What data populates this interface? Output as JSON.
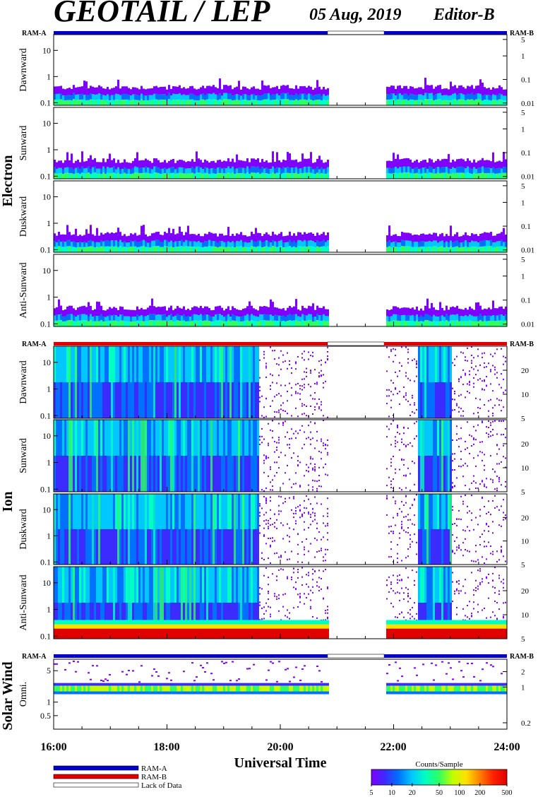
{
  "header": {
    "title": "GEOTAIL / LEP",
    "date": "05 Aug, 2019",
    "editor": "Editor-B"
  },
  "sections": {
    "electron": "Electron",
    "ion": "Ion",
    "solar_wind": "Solar Wind"
  },
  "ram_labels": {
    "a": "RAM-A",
    "b": "RAM-B"
  },
  "legend": {
    "ram_a": "RAM-A",
    "ram_b": "RAM-B",
    "lack": "Lack of Data",
    "colors": {
      "ram_a": "#0000c8",
      "ram_b": "#e00000",
      "lack": "#ffffff"
    }
  },
  "colorbar": {
    "title": "Counts/Sample",
    "ticks": [
      "5",
      "10",
      "20",
      "50",
      "100",
      "200",
      "500"
    ],
    "tick_values": [
      5,
      10,
      20,
      50,
      100,
      200,
      500
    ],
    "range": [
      5,
      500
    ],
    "scale": "log",
    "colormap": [
      "#7f00ff",
      "#3b2bff",
      "#0070ff",
      "#00c8ff",
      "#00ffc0",
      "#30ff60",
      "#c0ff00",
      "#ffe000",
      "#ff8000",
      "#ff2000",
      "#e00000"
    ]
  },
  "chart_data": {
    "type": "heatmap",
    "xlabel": "Universal Time",
    "x_ticks": [
      "16:00",
      "18:00",
      "20:00",
      "22:00",
      "24:00"
    ],
    "x_range": [
      "16:00",
      "24:00"
    ],
    "data_gap": [
      "20:50",
      "21:50"
    ],
    "panels": [
      {
        "group": "electron",
        "label": "Dawnward",
        "left_ticks": [
          "10",
          "1",
          "0.1"
        ],
        "left_values": [
          10,
          1,
          0.1
        ],
        "left_range": [
          0.08,
          40
        ],
        "right_ticks": [
          "5",
          "1",
          "0.1",
          "0.01"
        ],
        "right_values": [
          5,
          1,
          0.1,
          0.01
        ],
        "right_range": [
          0.008,
          8
        ]
      },
      {
        "group": "electron",
        "label": "Sunward",
        "left_ticks": [
          "10",
          "1",
          "0.1"
        ],
        "left_values": [
          10,
          1,
          0.1
        ],
        "left_range": [
          0.08,
          40
        ],
        "right_ticks": [
          "5",
          "1",
          "0.1",
          "0.01"
        ],
        "right_values": [
          5,
          1,
          0.1,
          0.01
        ],
        "right_range": [
          0.008,
          8
        ]
      },
      {
        "group": "electron",
        "label": "Duskward",
        "left_ticks": [
          "10",
          "1",
          "0.1"
        ],
        "left_values": [
          10,
          1,
          0.1
        ],
        "left_range": [
          0.08,
          40
        ],
        "right_ticks": [
          "5",
          "1",
          "0.1",
          "0.01"
        ],
        "right_values": [
          5,
          1,
          0.1,
          0.01
        ],
        "right_range": [
          0.008,
          8
        ]
      },
      {
        "group": "electron",
        "label": "Anti-Sunward",
        "left_ticks": [
          "10",
          "1",
          "0.1"
        ],
        "left_values": [
          10,
          1,
          0.1
        ],
        "left_range": [
          0.08,
          40
        ],
        "right_ticks": [
          "5",
          "1",
          "0.1",
          "0.01"
        ],
        "right_values": [
          5,
          1,
          0.1,
          0.01
        ],
        "right_range": [
          0.008,
          8
        ]
      },
      {
        "group": "ion",
        "label": "Dawnward",
        "left_ticks": [
          "10",
          "1",
          "0.1"
        ],
        "left_values": [
          10,
          1,
          0.1
        ],
        "left_range": [
          0.08,
          40
        ],
        "right_ticks": [
          "20",
          "10",
          "5"
        ],
        "right_values": [
          20,
          10,
          5
        ],
        "right_range": [
          5,
          40
        ]
      },
      {
        "group": "ion",
        "label": "Sunward",
        "left_ticks": [
          "10",
          "1",
          "0.1"
        ],
        "left_values": [
          10,
          1,
          0.1
        ],
        "left_range": [
          0.08,
          40
        ],
        "right_ticks": [
          "20",
          "10",
          "5"
        ],
        "right_values": [
          20,
          10,
          5
        ],
        "right_range": [
          5,
          40
        ]
      },
      {
        "group": "ion",
        "label": "Duskward",
        "left_ticks": [
          "10",
          "1",
          "0.1"
        ],
        "left_values": [
          10,
          1,
          0.1
        ],
        "left_range": [
          0.08,
          40
        ],
        "right_ticks": [
          "20",
          "10",
          "5"
        ],
        "right_values": [
          20,
          10,
          5
        ],
        "right_range": [
          5,
          40
        ]
      },
      {
        "group": "ion",
        "label": "Anti-Sunward",
        "left_ticks": [
          "10",
          "1",
          "0.1"
        ],
        "left_values": [
          10,
          1,
          0.1
        ],
        "left_range": [
          0.08,
          40
        ],
        "right_ticks": [
          "20",
          "10",
          "5"
        ],
        "right_values": [
          20,
          10,
          5
        ],
        "right_range": [
          5,
          40
        ]
      },
      {
        "group": "solar_wind",
        "label": "Omni.",
        "left_ticks": [
          "5",
          "1",
          "0.5"
        ],
        "left_values": [
          5,
          1,
          0.5
        ],
        "left_range": [
          0.25,
          9
        ],
        "right_ticks": [
          "2",
          "1",
          "0.2"
        ],
        "right_values": [
          2,
          1,
          0.2
        ],
        "right_range": [
          0.15,
          3.5
        ]
      }
    ]
  }
}
